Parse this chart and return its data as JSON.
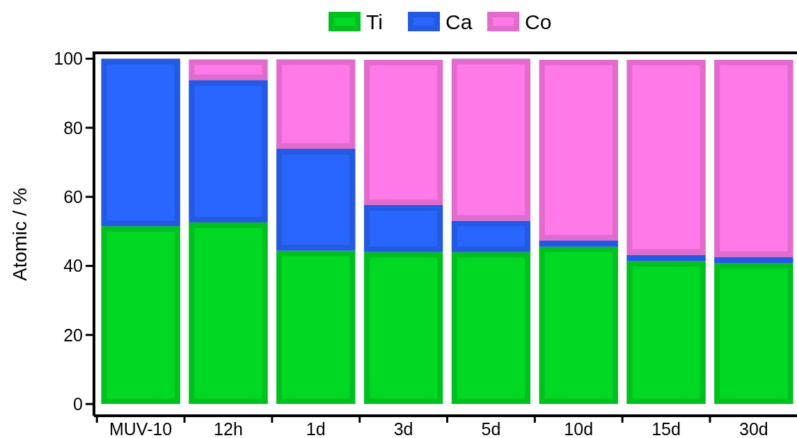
{
  "chart_data": {
    "type": "bar",
    "stacked": true,
    "ylabel": "Atomic / %",
    "categories": [
      "MUV-10",
      "12h",
      "1d",
      "3d",
      "5d",
      "10d",
      "15d",
      "30d"
    ],
    "series": [
      {
        "name": "Ti",
        "color": "#00d924",
        "values": [
          51.5,
          52.6,
          44.4,
          44.0,
          44.0,
          45.6,
          41.4,
          40.8
        ]
      },
      {
        "name": "Ca",
        "color": "#2965ff",
        "values": [
          48.5,
          41.2,
          29.5,
          13.6,
          9.1,
          1.8,
          1.8,
          1.8
        ]
      },
      {
        "name": "Co",
        "color": "#ff7ae8",
        "values": [
          0,
          6.0,
          25.9,
          42.1,
          46.9,
          52.3,
          56.5,
          57.1
        ]
      }
    ],
    "ylim": [
      -3.4,
      101.7
    ],
    "yticks": [
      0,
      20,
      40,
      60,
      80,
      100
    ],
    "legend": "top",
    "grid": false
  }
}
